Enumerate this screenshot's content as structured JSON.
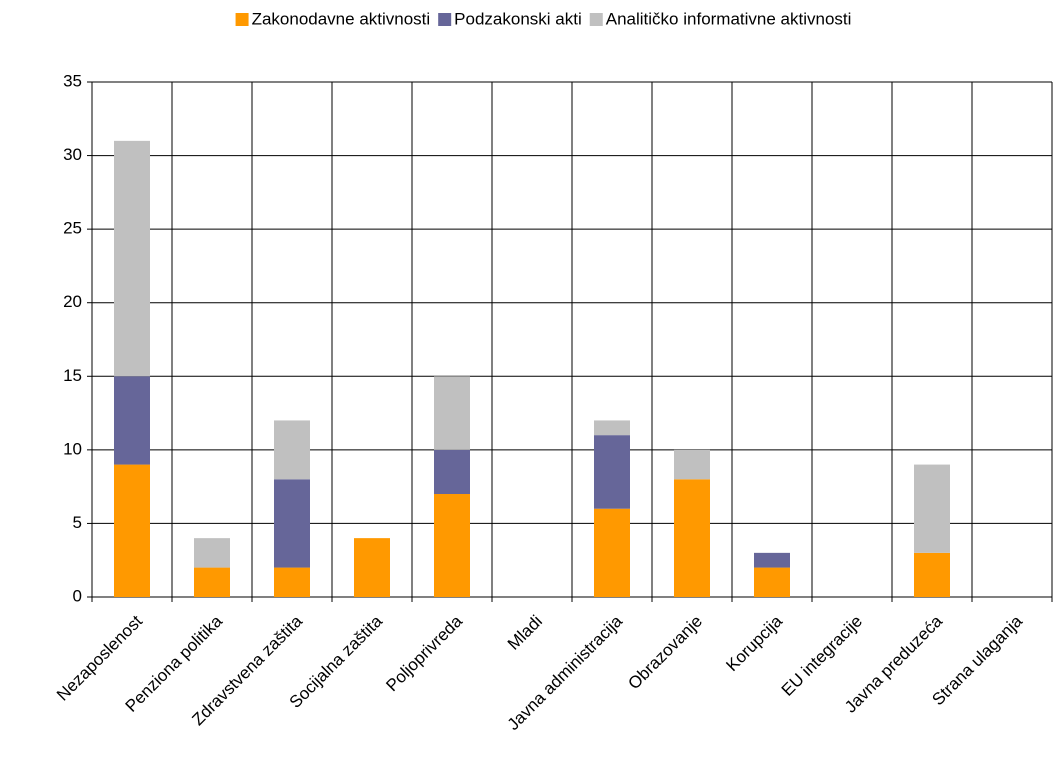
{
  "chart_data": {
    "type": "stacked_bar",
    "categories": [
      "Nezaposlenost",
      "Penziona politika",
      "Zdravstvena zaštita",
      "Socijalna zaštita",
      "Poljoprivreda",
      "Mladi",
      "Javna administracija",
      "Obrazovanje",
      "Korupcija",
      "EU integracije",
      "Javna preduzeća",
      "Strana ulaganja"
    ],
    "series": [
      {
        "name": "Zakonodavne aktivnosti",
        "color": "#ff9900",
        "values": [
          9,
          2,
          2,
          4,
          7,
          0,
          6,
          8,
          2,
          0,
          3,
          0
        ]
      },
      {
        "name": "Podzakonski akti",
        "color": "#666699",
        "values": [
          6,
          0,
          6,
          0,
          3,
          0,
          5,
          0,
          1,
          0,
          0,
          0
        ]
      },
      {
        "name": "Analitičko informativne aktivnosti",
        "color": "#c0c0c0",
        "values": [
          16,
          2,
          4,
          0,
          5,
          0,
          1,
          2,
          0,
          0,
          6,
          0
        ]
      }
    ],
    "ylim": [
      0,
      35
    ],
    "yticks": [
      0,
      5,
      10,
      15,
      20,
      25,
      30,
      35
    ],
    "grid": true,
    "legend": "top"
  }
}
